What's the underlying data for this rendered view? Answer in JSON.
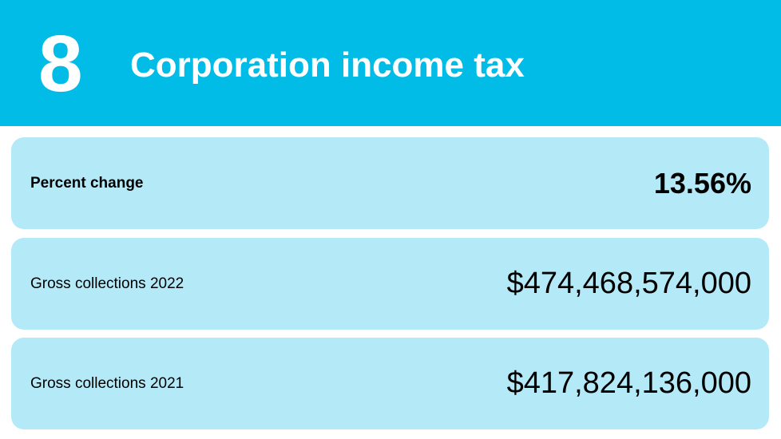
{
  "header": {
    "rank": "8",
    "title": "Corporation income tax"
  },
  "rows": [
    {
      "label": "Percent change",
      "value": "13.56%"
    },
    {
      "label": "Gross collections 2022",
      "value": "$474,468,574,000"
    },
    {
      "label": "Gross collections 2021",
      "value": "$417,824,136,000"
    }
  ]
}
